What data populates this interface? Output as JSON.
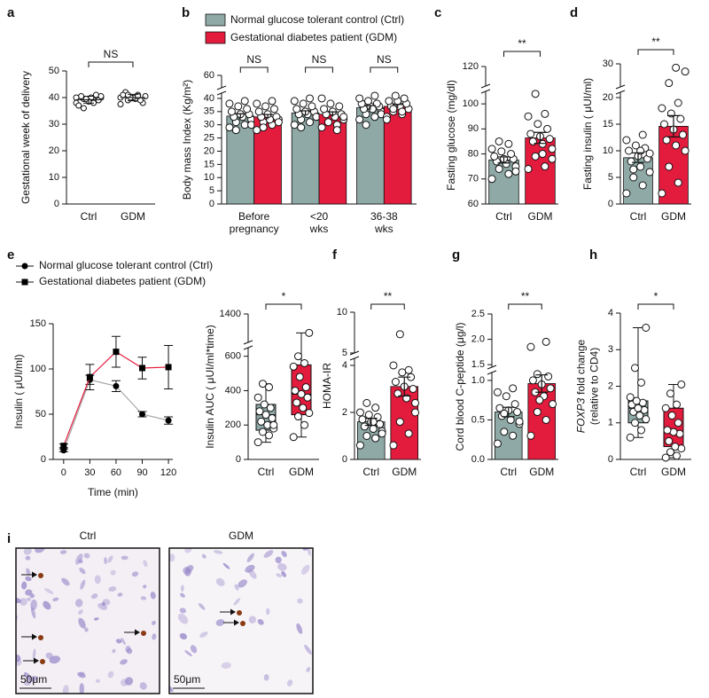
{
  "chart_data": [
    {
      "panel": "a",
      "type": "dot",
      "ylabel": "Gestational week of delivery",
      "categories": [
        "Ctrl",
        "GDM"
      ],
      "colors": [
        "#000000",
        "#000000"
      ],
      "values": [
        39.2,
        40
      ],
      "errors": [
        1.3,
        1.2
      ],
      "points": [
        [
          38,
          39,
          39.5,
          40,
          40,
          40.5,
          39,
          38.5,
          37,
          41,
          39.5,
          40,
          38,
          36,
          40.5
        ],
        [
          40,
          41,
          39,
          40.5,
          39.5,
          42,
          38,
          40,
          41,
          39,
          40,
          37.5,
          40.5,
          41
        ]
      ],
      "ylim": [
        0,
        50
      ],
      "yticks": [
        0,
        10,
        20,
        30,
        40,
        50
      ],
      "annotation": "NS"
    },
    {
      "panel": "b",
      "type": "bar",
      "ylabel": "Body mass Index  (Kg/m²)",
      "categories": [
        [
          "Before",
          "pregnancy"
        ],
        [
          "<20",
          "wks"
        ],
        [
          "36-38",
          "wks"
        ]
      ],
      "series": [
        {
          "name": "Normal glucose tolerant control (Ctrl)",
          "color": "#8ea9a6",
          "values": [
            33.3,
            34.5,
            36.5
          ],
          "errors": [
            0.9,
            0.8,
            0.8
          ],
          "points": [
            [
              29,
              30,
              31,
              32,
              33,
              33,
              34,
              34,
              35,
              36,
              37,
              38,
              39,
              28,
              30
            ],
            [
              30,
              31,
              32,
              33,
              34,
              34,
              35,
              35,
              36,
              37,
              38,
              39,
              40,
              29,
              33
            ],
            [
              32,
              33,
              34,
              35,
              36,
              36,
              37,
              37,
              38,
              38,
              39,
              40,
              41,
              30,
              34,
              36
            ]
          ]
        },
        {
          "name": "Gestational diabetes patient (GDM)",
          "color": "#e31b3d",
          "values": [
            33,
            34,
            37
          ],
          "errors": [
            0.9,
            0.9,
            0.7
          ],
          "points": [
            [
              28,
              30,
              31,
              32,
              32,
              33,
              33,
              34,
              35,
              36,
              37,
              38,
              39,
              29,
              31
            ],
            [
              29,
              30,
              31,
              32,
              33,
              34,
              34,
              35,
              36,
              37,
              38,
              40,
              28,
              31,
              33
            ],
            [
              33,
              34,
              35,
              36,
              37,
              37,
              38,
              39,
              39,
              40,
              41,
              32,
              35,
              36
            ]
          ]
        }
      ],
      "ylim": [
        0,
        60
      ],
      "ybreak": [
        42,
        58
      ],
      "yticks": [
        0,
        5,
        10,
        15,
        20,
        25,
        30,
        35,
        40,
        60
      ],
      "annotations": [
        "NS",
        "NS",
        "NS"
      ]
    },
    {
      "panel": "c",
      "type": "bar",
      "ylabel": "Fasting glucose  (mg/dl)",
      "categories": [
        "Ctrl",
        "GDM"
      ],
      "colors": [
        "#8ea9a6",
        "#e31b3d"
      ],
      "values": [
        77.6,
        86.4
      ],
      "errors": [
        1.2,
        2.2
      ],
      "points": [
        [
          70,
          72,
          74,
          75,
          76,
          77,
          78,
          78,
          79,
          80,
          81,
          82,
          84,
          85,
          73
        ],
        [
          74,
          75,
          79,
          82,
          84,
          85,
          86,
          87,
          88,
          90,
          92,
          95,
          96,
          104,
          78,
          80
        ]
      ],
      "ylim": [
        60,
        120
      ],
      "ybreak": [
        105,
        115
      ],
      "yticks": [
        60,
        70,
        80,
        90,
        100,
        120
      ],
      "annotation": "**"
    },
    {
      "panel": "d",
      "type": "bar",
      "ylabel": "Fasting insulin ( μUI/ml)",
      "categories": [
        "Ctrl",
        "GDM"
      ],
      "colors": [
        "#8ea9a6",
        "#e31b3d"
      ],
      "values": [
        8.7,
        14.6
      ],
      "errors": [
        0.9,
        2.0
      ],
      "points": [
        [
          2,
          3.5,
          5,
          6,
          7,
          8,
          8.5,
          9,
          10,
          10.5,
          11,
          12,
          13,
          6.5,
          9.5,
          10
        ],
        [
          2,
          4,
          7,
          10,
          11,
          12,
          13,
          14,
          15,
          16,
          17,
          18,
          19,
          25,
          28,
          29
        ]
      ],
      "ylim": [
        0,
        30
      ],
      "ybreak": [
        21,
        24
      ],
      "yticks": [
        0,
        5,
        10,
        15,
        20,
        30
      ],
      "annotation": "**"
    },
    {
      "panel": "e",
      "type": "line",
      "xlabel": "Time (min)",
      "ylabel": "Insulin ( μUI/ml)",
      "x": [
        0,
        30,
        60,
        90,
        120
      ],
      "xlim": [
        -12,
        125
      ],
      "xticks": [
        0,
        30,
        60,
        90,
        120
      ],
      "ylim": [
        0,
        150
      ],
      "yticks": [
        0,
        50,
        100,
        150
      ],
      "series": [
        {
          "name": "Normal glucose tolerant control (Ctrl)",
          "color": "#a6a6a6",
          "marker": "circle",
          "marker_color": "#000000",
          "values": [
            10,
            88,
            81,
            50,
            43
          ],
          "errors": [
            1.5,
            5,
            6,
            3,
            4
          ]
        },
        {
          "name": "Gestational diabetes patient (GDM)",
          "color": "#e31b3d",
          "marker": "square",
          "marker_color": "#000000",
          "values": [
            15,
            91,
            119,
            101,
            102
          ],
          "errors": [
            2,
            14,
            17,
            12,
            24
          ]
        }
      ]
    },
    {
      "type": "box",
      "ylabel": "Insulin AUC ( μUI/ml*time)",
      "categories": [
        "Ctrl",
        "GDM"
      ],
      "colors": [
        "#8ea9a6",
        "#e31b3d"
      ],
      "boxes": [
        {
          "min": 100,
          "q1": 170,
          "median": 260,
          "q3": 320,
          "max": 440
        },
        {
          "min": 130,
          "q1": 260,
          "median": 380,
          "q3": 550,
          "max": 1000
        }
      ],
      "points": [
        [
          100,
          140,
          160,
          180,
          200,
          220,
          240,
          260,
          280,
          300,
          320,
          360,
          420,
          440,
          200
        ],
        [
          130,
          200,
          250,
          270,
          300,
          330,
          360,
          380,
          400,
          420,
          480,
          540,
          560,
          600,
          1000
        ]
      ],
      "ylim": [
        0,
        1400
      ],
      "ybreak": [
        650,
        800
      ],
      "yticks": [
        0,
        200,
        400,
        600,
        1400
      ],
      "annotation": "*"
    },
    {
      "panel": "f",
      "type": "bar",
      "ylabel": "HOMA-IR",
      "categories": [
        "Ctrl",
        "GDM"
      ],
      "colors": [
        "#8ea9a6",
        "#e31b3d"
      ],
      "values": [
        1.6,
        3.1
      ],
      "errors": [
        0.15,
        0.4
      ],
      "points": [
        [
          0.6,
          0.9,
          1.0,
          1.2,
          1.3,
          1.4,
          1.5,
          1.6,
          1.7,
          1.8,
          1.9,
          2.0,
          2.2,
          2.4,
          1.1,
          1.6
        ],
        [
          0.6,
          1.1,
          1.6,
          2.0,
          2.6,
          2.8,
          3.0,
          3.1,
          3.3,
          3.5,
          3.7,
          4.0,
          3.8,
          7.3,
          2.4
        ]
      ],
      "ylim": [
        0,
        10
      ],
      "ybreak": [
        4.3,
        5
      ],
      "yticks": [
        0,
        2,
        4,
        5,
        10
      ],
      "annotation": "**"
    },
    {
      "panel": "g",
      "type": "bar",
      "ylabel": "Cord blood C-peptide (μg/l)",
      "categories": [
        "Ctrl",
        "GDM"
      ],
      "colors": [
        "#8ea9a6",
        "#e31b3d"
      ],
      "values": [
        0.6,
        0.96
      ],
      "errors": [
        0.06,
        0.11
      ],
      "points": [
        [
          0.2,
          0.3,
          0.35,
          0.45,
          0.5,
          0.55,
          0.6,
          0.62,
          0.65,
          0.7,
          0.8,
          0.85,
          0.9,
          0.58,
          0.48
        ],
        [
          0.3,
          0.5,
          0.6,
          0.7,
          0.8,
          0.85,
          0.9,
          0.95,
          1.0,
          1.05,
          0.75,
          1.85,
          1.95,
          1.08
        ]
      ],
      "ylim": [
        0,
        2.5
      ],
      "ybreak": [
        1.1,
        1.45
      ],
      "yticks": [
        {
          "value": 0,
          "label": "0.0"
        },
        0.5,
        {
          "value": 1,
          "label": "1.0"
        },
        1.5,
        {
          "value": 2,
          "label": "2.0"
        },
        2.5
      ],
      "annotation": "**"
    },
    {
      "panel": "h",
      "type": "box",
      "gene": "FOXP3",
      "ylabel": [
        "fold change",
        "(relative to CD4)"
      ],
      "categories": [
        "Ctrl",
        "GDM"
      ],
      "colors": [
        "#8ea9a6",
        "#e31b3d"
      ],
      "boxes": [
        {
          "min": 0.6,
          "q1": 1.0,
          "median": 1.4,
          "q3": 1.6,
          "max": 3.6
        },
        {
          "min": 0.05,
          "q1": 0.35,
          "median": 0.75,
          "q3": 1.4,
          "max": 2.05
        }
      ],
      "points": [
        [
          0.6,
          0.8,
          1.0,
          1.1,
          1.2,
          1.3,
          1.35,
          1.4,
          1.5,
          1.55,
          1.6,
          1.7,
          2.1,
          2.5,
          3.6
        ],
        [
          0.05,
          0.1,
          0.2,
          0.3,
          0.35,
          0.5,
          0.7,
          0.75,
          0.8,
          1.0,
          1.2,
          1.4,
          1.5,
          1.8,
          2.05
        ]
      ],
      "ylim": [
        0,
        4
      ],
      "yticks": [
        0,
        1,
        2,
        3,
        4
      ],
      "annotation": "*"
    }
  ],
  "micrographs": {
    "panel": "i",
    "images": [
      {
        "label": "Ctrl",
        "scale_bar": "50μm"
      },
      {
        "label": "GDM",
        "scale_bar": "50μm"
      }
    ]
  }
}
